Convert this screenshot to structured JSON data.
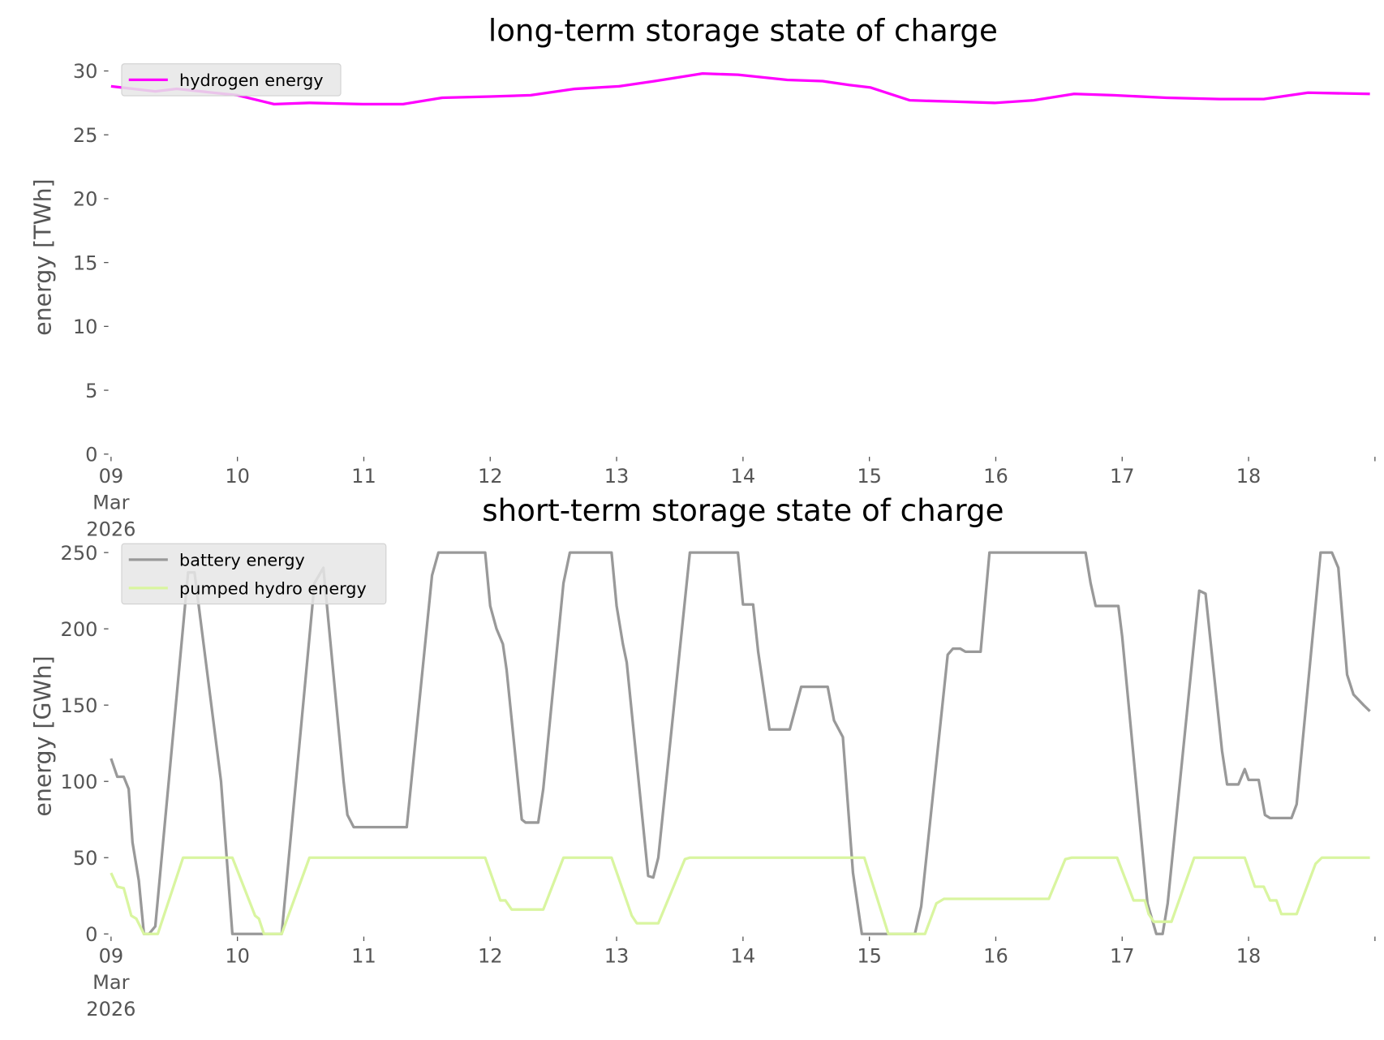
{
  "chart_data": [
    {
      "type": "line",
      "title": "long-term storage state of charge",
      "xlabel": "",
      "ylabel": "energy [TWh]",
      "x_unit": "days since 09 Mar 2026 00:00",
      "xlim": [
        0,
        10
      ],
      "ylim": [
        0,
        30
      ],
      "yticks": [
        0,
        5,
        10,
        15,
        20,
        25,
        30
      ],
      "xtick_labels": [
        "09\nMar\n2026",
        "10",
        "11",
        "12",
        "13",
        "14",
        "15",
        "16",
        "17",
        "18"
      ],
      "grid": false,
      "legend_position": "top-left",
      "series": [
        {
          "name": "hydrogen energy",
          "color": "#ff00ff",
          "x": [
            0,
            0.35,
            0.52,
            1.0,
            1.29,
            1.57,
            1.99,
            2.31,
            2.62,
            3.0,
            3.32,
            3.67,
            4.02,
            4.3,
            4.68,
            4.96,
            5.35,
            5.63,
            5.84,
            6.01,
            6.32,
            6.67,
            6.99,
            7.3,
            7.62,
            7.93,
            8.35,
            8.77,
            9.12,
            9.47,
            9.96
          ],
          "y": [
            28.8,
            28.4,
            28.6,
            28.1,
            27.4,
            27.5,
            27.4,
            27.4,
            27.9,
            28.0,
            28.1,
            28.6,
            28.8,
            29.2,
            29.8,
            29.7,
            29.3,
            29.2,
            28.9,
            28.7,
            27.7,
            27.6,
            27.5,
            27.7,
            28.2,
            28.1,
            27.9,
            27.8,
            27.8,
            28.3,
            28.2
          ]
        }
      ]
    },
    {
      "type": "line",
      "title": "short-term storage state of charge",
      "xlabel": "",
      "ylabel": "energy [GWh]",
      "x_unit": "days since 09 Mar 2026 00:00",
      "xlim": [
        0,
        10
      ],
      "ylim": [
        0,
        250
      ],
      "yticks": [
        0,
        50,
        100,
        150,
        200,
        250
      ],
      "xtick_labels": [
        "09\nMar\n2026",
        "10",
        "11",
        "12",
        "13",
        "14",
        "15",
        "16",
        "17",
        "18"
      ],
      "grid": false,
      "legend_position": "top-left",
      "series": [
        {
          "name": "battery energy",
          "color": "#999999",
          "x": [
            0,
            0.05,
            0.1,
            0.14,
            0.17,
            0.22,
            0.26,
            0.3,
            0.35,
            0.61,
            0.66,
            0.87,
            0.96,
            1.35,
            1.61,
            1.68,
            1.84,
            1.87,
            1.92,
            2.34,
            2.54,
            2.59,
            2.96,
            3.0,
            3.05,
            3.1,
            3.13,
            3.25,
            3.28,
            3.38,
            3.42,
            3.58,
            3.63,
            3.96,
            4.0,
            4.05,
            4.08,
            4.25,
            4.29,
            4.33,
            4.58,
            4.96,
            5.0,
            5.08,
            5.12,
            5.21,
            5.37,
            5.46,
            5.67,
            5.72,
            5.79,
            5.87,
            5.94,
            6.36,
            6.41,
            6.62,
            6.66,
            6.72,
            6.76,
            6.88,
            6.95,
            7.71,
            7.75,
            7.79,
            7.97,
            8.0,
            8.2,
            8.27,
            8.32,
            8.36,
            8.61,
            8.66,
            8.79,
            8.83,
            8.92,
            8.97,
            9.0,
            9.08,
            9.13,
            9.17,
            9.34,
            9.38,
            9.57,
            9.66,
            9.71,
            9.78,
            9.83,
            9.91,
            9.96
          ],
          "y": [
            115,
            103,
            103,
            95,
            60,
            35,
            0,
            0,
            5,
            237,
            237,
            100,
            0,
            0,
            230,
            240,
            100,
            78,
            70,
            70,
            235,
            250,
            250,
            215,
            200,
            190,
            173,
            75,
            73,
            73,
            95,
            230,
            250,
            250,
            215,
            190,
            178,
            38,
            37,
            50,
            250,
            250,
            216,
            216,
            185,
            134,
            134,
            162,
            162,
            140,
            129,
            40,
            0,
            0,
            18,
            183,
            187,
            187,
            185,
            185,
            250,
            250,
            230,
            215,
            215,
            195,
            20,
            0,
            0,
            20,
            225,
            223,
            120,
            98,
            98,
            108,
            101,
            101,
            78,
            76,
            76,
            85,
            250,
            250,
            240,
            170,
            157,
            150,
            146
          ]
        },
        {
          "name": "pumped hydro energy",
          "color": "#d9f5a0",
          "x": [
            0,
            0.05,
            0.1,
            0.16,
            0.2,
            0.26,
            0.37,
            0.57,
            0.96,
            1.14,
            1.17,
            1.21,
            1.35,
            1.57,
            2.96,
            3.08,
            3.12,
            3.17,
            3.42,
            3.58,
            3.96,
            4.12,
            4.16,
            4.33,
            4.54,
            4.58,
            5.96,
            6.15,
            6.44,
            6.53,
            6.59,
            7.42,
            7.55,
            7.6,
            7.96,
            8.09,
            8.18,
            8.21,
            8.25,
            8.39,
            8.57,
            8.97,
            9.05,
            9.12,
            9.17,
            9.22,
            9.26,
            9.38,
            9.53,
            9.58,
            9.96
          ],
          "y": [
            40,
            31,
            30,
            12,
            10,
            0,
            0,
            50,
            50,
            12,
            10,
            0,
            0,
            50,
            50,
            22,
            22,
            16,
            16,
            50,
            50,
            12,
            7,
            7,
            49,
            50,
            50,
            0,
            0,
            20,
            23,
            23,
            49,
            50,
            50,
            22,
            22,
            13,
            8,
            8,
            50,
            50,
            31,
            31,
            22,
            22,
            13,
            13,
            46,
            50,
            50
          ]
        }
      ]
    }
  ]
}
